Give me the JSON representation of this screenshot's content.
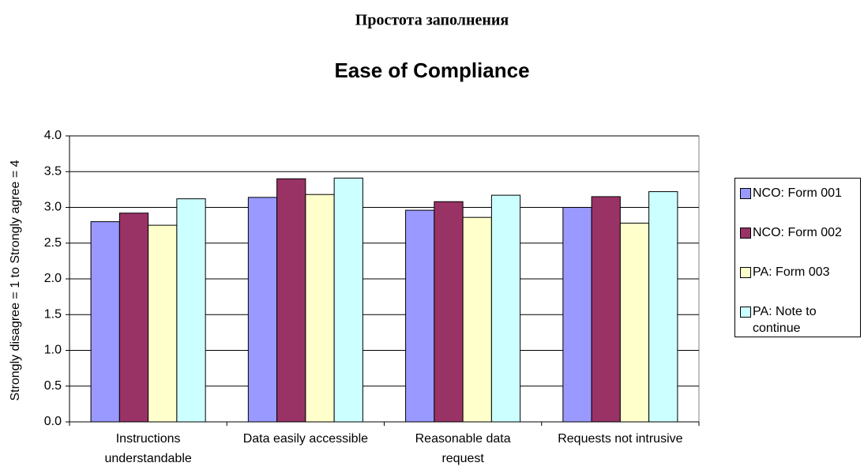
{
  "chart_data": {
    "type": "bar",
    "title": "Простота заполнения",
    "subtitle": "Ease of Compliance",
    "y_label": "Strongly disagree = 1 to Strongly agree = 4",
    "categories": [
      "Instructions understandable",
      "Data easily accessible",
      "Reasonable data request",
      "Requests not intrusive"
    ],
    "series": [
      {
        "name": "NCO: Form 001",
        "color": "#9999ff",
        "values": [
          2.8,
          3.14,
          2.96,
          3.0
        ]
      },
      {
        "name": "NCO: Form 002",
        "color": "#993366",
        "values": [
          2.92,
          3.4,
          3.08,
          3.15
        ]
      },
      {
        "name": "PA: Form 003",
        "color": "#ffffcc",
        "values": [
          2.75,
          3.18,
          2.86,
          2.78
        ]
      },
      {
        "name": "PA: Note to continue",
        "color": "#ccffff",
        "values": [
          3.12,
          3.41,
          3.17,
          3.22
        ]
      }
    ],
    "ylim": [
      0,
      4
    ],
    "yticks": [
      {
        "value": 0,
        "label": "0.0"
      },
      {
        "value": 0.5,
        "label": "0.5"
      },
      {
        "value": 1,
        "label": "1.0"
      },
      {
        "value": 1.5,
        "label": "1.5"
      },
      {
        "value": 2,
        "label": "2.0"
      },
      {
        "value": 2.5,
        "label": "2.5"
      },
      {
        "value": 3,
        "label": "3.0"
      },
      {
        "value": 3.5,
        "label": "3.5"
      },
      {
        "value": 4,
        "label": "4.0"
      }
    ],
    "grid": true,
    "legend": "right"
  }
}
